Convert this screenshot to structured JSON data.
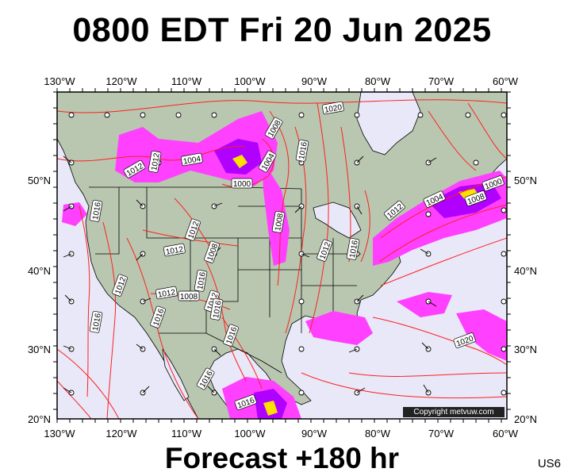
{
  "title": "0800 EDT Fri 20 Jun 2025",
  "footer": "Forecast +180 hr",
  "region_code": "US6",
  "copyright": "Copyright metvuw.com",
  "longitude_labels": [
    "130°W",
    "120°W",
    "110°W",
    "100°W",
    "90°W",
    "80°W",
    "70°W",
    "60°W"
  ],
  "latitude_labels": [
    "50°N",
    "40°N",
    "30°N",
    "20°N"
  ],
  "isobar_labels": [
    "1012",
    "1012",
    "1004",
    "1000",
    "1004",
    "1008",
    "1016",
    "1008",
    "1012",
    "1016",
    "1012",
    "1008",
    "1004",
    "1000",
    "1016",
    "1012",
    "1020",
    "1016",
    "1012",
    "1008",
    "1012",
    "1012",
    "1016",
    "1012",
    "1008",
    "1016",
    "1016",
    "1016",
    "1016",
    "1020",
    "1016"
  ],
  "colors": {
    "isobar": "#ff2020",
    "ocean": "#e8e8f8",
    "land": "#b9c7b0",
    "rain_light": "#ff40ff",
    "rain_mid": "#b000ff",
    "rain_heavy": "#ffe000"
  }
}
